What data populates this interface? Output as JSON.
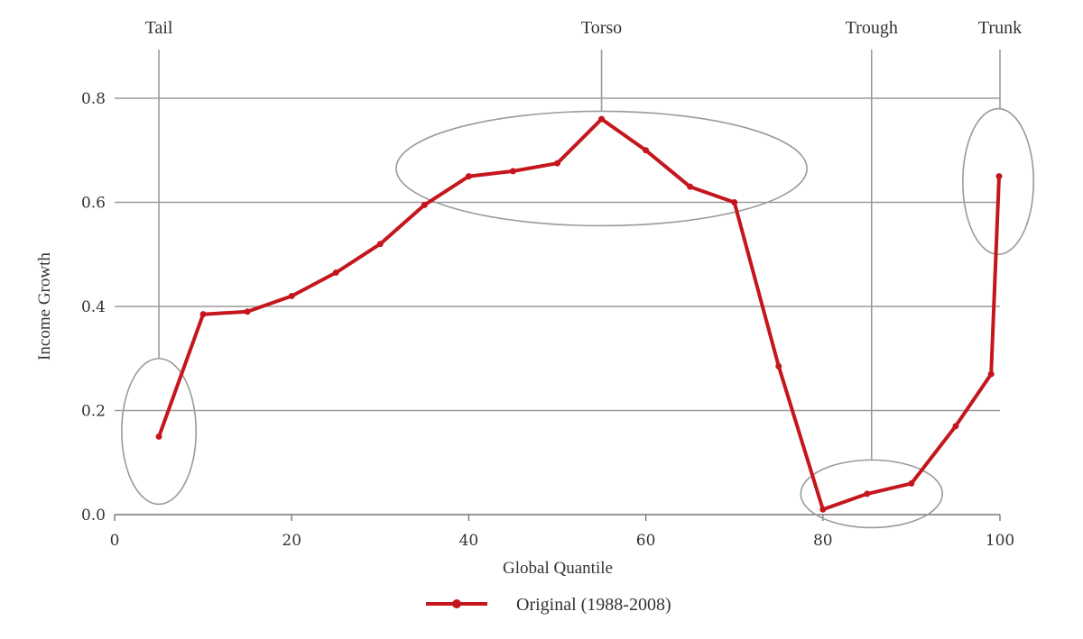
{
  "chart_data": {
    "type": "line",
    "xlabel": "Global Quantile",
    "ylabel": "Income Growth",
    "xlim": [
      0,
      100
    ],
    "ylim": [
      0,
      0.8
    ],
    "x_ticks": [
      0,
      20,
      40,
      60,
      80,
      100
    ],
    "y_ticks": [
      0.0,
      0.2,
      0.4,
      0.6,
      0.8
    ],
    "y_tick_labels": [
      "0.0",
      "0.2",
      "0.4",
      "0.6",
      "0.8"
    ],
    "grid": "horizontal",
    "legend_position": "bottom-center",
    "series": [
      {
        "name": "Original (1988-2008)",
        "color": "#c4161c",
        "x": [
          5,
          10,
          15,
          20,
          25,
          30,
          35,
          40,
          45,
          50,
          55,
          60,
          65,
          70,
          75,
          80,
          85,
          90,
          95,
          99,
          99.9
        ],
        "y": [
          0.15,
          0.385,
          0.39,
          0.42,
          0.465,
          0.52,
          0.595,
          0.65,
          0.66,
          0.675,
          0.76,
          0.7,
          0.63,
          0.6,
          0.285,
          0.01,
          0.04,
          0.06,
          0.17,
          0.27,
          0.65
        ]
      }
    ],
    "annotations": [
      {
        "label": "Tail",
        "x": 5,
        "cx": 5,
        "cy": 0.16,
        "rx": 4.2,
        "ry": 0.14
      },
      {
        "label": "Torso",
        "x": 55,
        "cx": 55,
        "cy": 0.665,
        "rx": 23.2,
        "ry": 0.11
      },
      {
        "label": "Trough",
        "x": 85.5,
        "cx": 85.5,
        "cy": 0.04,
        "rx": 8,
        "ry": 0.065
      },
      {
        "label": "Trunk",
        "x": 100,
        "cx": 99.8,
        "cy": 0.64,
        "rx": 4,
        "ry": 0.14
      }
    ]
  }
}
